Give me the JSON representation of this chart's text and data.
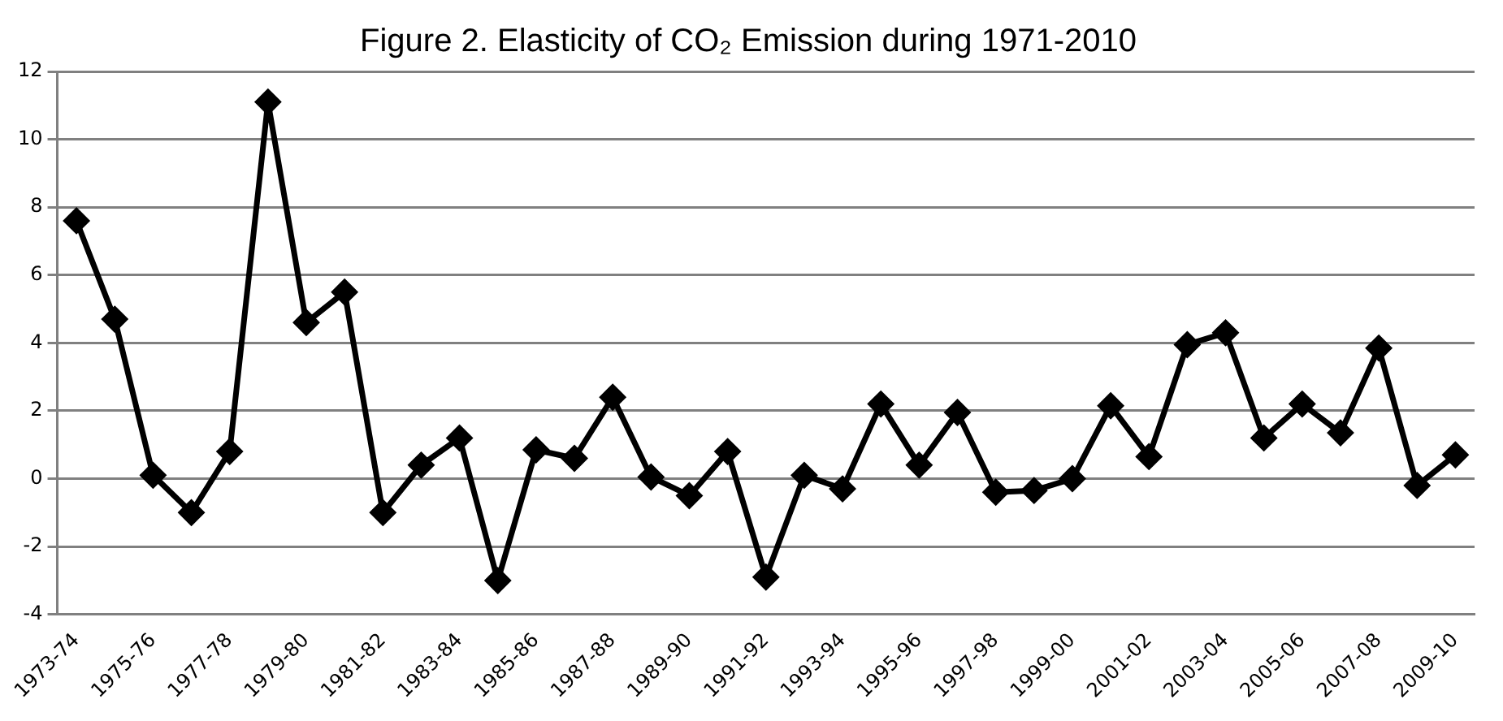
{
  "chart_data": {
    "type": "line",
    "title": "Figure 2. Elasticity of CO₂ Emission during 1971-2010",
    "categories": [
      "1973-74",
      null,
      "1975-76",
      null,
      "1977-78",
      null,
      "1979-80",
      null,
      "1981-82",
      null,
      "1983-84",
      null,
      "1985-86",
      null,
      "1987-88",
      null,
      "1989-90",
      null,
      "1991-92",
      null,
      "1993-94",
      null,
      "1995-96",
      null,
      "1997-98",
      null,
      "1999-00",
      null,
      "2001-02",
      null,
      "2003-04",
      null,
      "2005-06",
      null,
      "2007-08",
      null,
      "2009-10"
    ],
    "series": [
      {
        "color": "#000000",
        "values": [
          7.6,
          4.7,
          0.1,
          -1.0,
          0.8,
          11.1,
          4.6,
          5.5,
          -1.0,
          0.4,
          1.2,
          -3.0,
          0.85,
          0.6,
          2.4,
          0.05,
          -0.5,
          0.8,
          -2.9,
          0.1,
          -0.3,
          2.2,
          0.4,
          1.95,
          -0.4,
          -0.35,
          0.0,
          2.15,
          0.65,
          3.95,
          4.3,
          1.2,
          2.2,
          1.35,
          3.85,
          -0.2,
          0.7
        ]
      }
    ],
    "ylim": [
      -4,
      12
    ],
    "yticks": [
      -4,
      -2,
      0,
      2,
      4,
      6,
      8,
      10,
      12
    ],
    "grid": "y",
    "legend": false,
    "marker": "diamond",
    "line_style": "solid"
  }
}
